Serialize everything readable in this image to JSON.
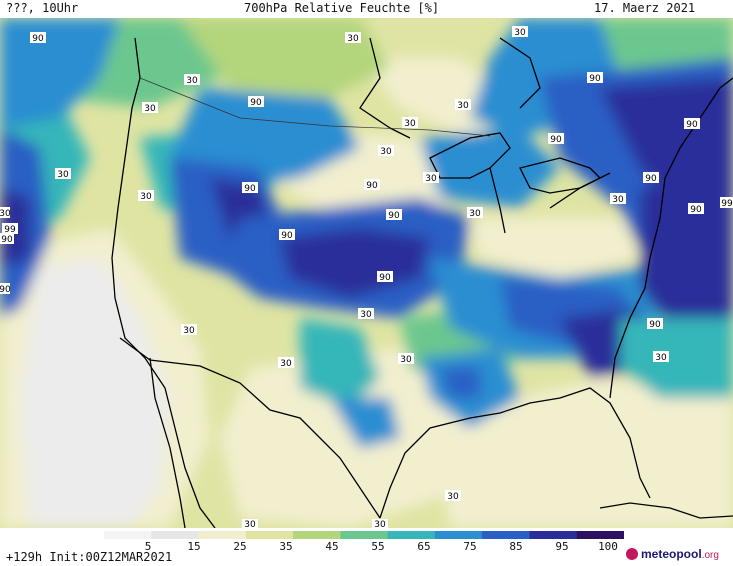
{
  "header": {
    "left": "???, 10Uhr",
    "title": "700hPa Relative Feuchte [%]",
    "date": "17. Maerz 2021"
  },
  "legend": {
    "ticks": [
      "5",
      "15",
      "25",
      "35",
      "45",
      "55",
      "65",
      "75",
      "85",
      "95",
      "100"
    ],
    "colors": [
      "#f4f4f4",
      "#e6e6e6",
      "#f2efcf",
      "#dfe4a3",
      "#b3d57c",
      "#6cc78e",
      "#36b6b9",
      "#2a8ed1",
      "#2a5fc4",
      "#2a2e9a",
      "#2e1060"
    ]
  },
  "footer": {
    "init": "+129h Init:00Z12MAR2021",
    "logo_main": "meteopool",
    "logo_tld": ".org"
  },
  "contour_labels": [
    "90",
    "30",
    "90",
    "30",
    "30",
    "90",
    "30",
    "90",
    "30",
    "90",
    "30",
    "90",
    "30",
    "30",
    "90",
    "30",
    "90",
    "90",
    "90",
    "30",
    "90",
    "30",
    "30",
    "90",
    "30",
    "99",
    "99",
    "30",
    "30",
    "30",
    "30",
    "30",
    "30",
    "90",
    "90",
    "30",
    "90",
    "30"
  ]
}
